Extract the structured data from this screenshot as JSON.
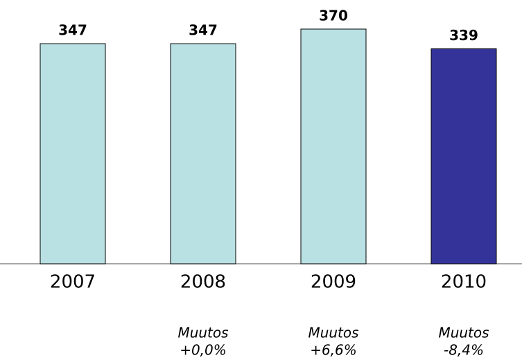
{
  "chart_data": {
    "type": "bar",
    "categories": [
      "2007",
      "2008",
      "2009",
      "2010"
    ],
    "values": [
      347,
      347,
      370,
      339
    ],
    "colors": [
      "#b9e0e3",
      "#b9e0e3",
      "#b9e0e3",
      "#333399"
    ],
    "notes": [
      null,
      [
        "Muutos",
        "+0,0%"
      ],
      [
        "Muutos",
        "+6,6%"
      ],
      [
        "Muutos",
        "-8,4%"
      ]
    ]
  }
}
